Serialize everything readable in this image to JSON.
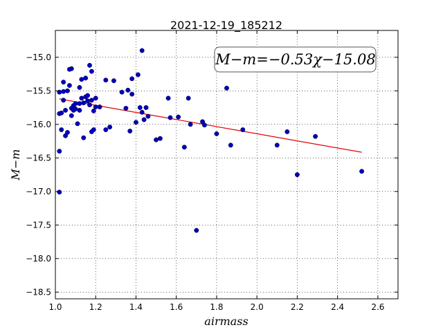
{
  "chart_data": {
    "type": "scatter",
    "title": "2021-12-19_185212",
    "xlabel": "airmass",
    "ylabel": "M−m",
    "xlim": [
      1.0,
      2.7
    ],
    "ylim": [
      -18.6,
      -14.6
    ],
    "y_inverted": true,
    "grid": true,
    "xticks": [
      "1.0",
      "1.2",
      "1.4",
      "1.6",
      "1.8",
      "2.0",
      "2.2",
      "2.4",
      "2.6"
    ],
    "yticks": [
      "−15.0",
      "−15.5",
      "−16.0",
      "−16.5",
      "−17.0",
      "−17.5",
      "−18.0",
      "−18.5"
    ],
    "annotation": "M−m=−0.53χ−15.08",
    "annotation_placement": "top-right",
    "fit_line": {
      "slope": -0.53,
      "intercept": -15.08,
      "x_range": [
        1.02,
        2.52
      ],
      "color": "#dd0000"
    },
    "point_color": "#0000bb",
    "points": [
      [
        1.02,
        -15.84
      ],
      [
        1.02,
        -16.4
      ],
      [
        1.02,
        -17.01
      ],
      [
        1.02,
        -15.52
      ],
      [
        1.03,
        -15.83
      ],
      [
        1.03,
        -16.08
      ],
      [
        1.04,
        -15.37
      ],
      [
        1.04,
        -15.64
      ],
      [
        1.04,
        -15.51
      ],
      [
        1.05,
        -16.17
      ],
      [
        1.05,
        -15.79
      ],
      [
        1.06,
        -15.5
      ],
      [
        1.06,
        -16.12
      ],
      [
        1.07,
        -15.18
      ],
      [
        1.07,
        -15.42
      ],
      [
        1.08,
        -15.17
      ],
      [
        1.08,
        -15.76
      ],
      [
        1.08,
        -15.87
      ],
      [
        1.09,
        -15.79
      ],
      [
        1.09,
        -15.72
      ],
      [
        1.1,
        -15.77
      ],
      [
        1.1,
        -15.69
      ],
      [
        1.11,
        -15.99
      ],
      [
        1.12,
        -15.69
      ],
      [
        1.12,
        -15.79
      ],
      [
        1.12,
        -15.45
      ],
      [
        1.13,
        -15.61
      ],
      [
        1.13,
        -15.33
      ],
      [
        1.14,
        -15.68
      ],
      [
        1.14,
        -16.2
      ],
      [
        1.15,
        -15.31
      ],
      [
        1.15,
        -15.59
      ],
      [
        1.16,
        -15.65
      ],
      [
        1.16,
        -15.57
      ],
      [
        1.17,
        -15.71
      ],
      [
        1.17,
        -15.12
      ],
      [
        1.18,
        -15.64
      ],
      [
        1.18,
        -15.21
      ],
      [
        1.18,
        -16.11
      ],
      [
        1.19,
        -16.08
      ],
      [
        1.19,
        -15.8
      ],
      [
        1.2,
        -15.74
      ],
      [
        1.2,
        -15.61
      ],
      [
        1.22,
        -15.74
      ],
      [
        1.25,
        -15.34
      ],
      [
        1.25,
        -16.08
      ],
      [
        1.27,
        -16.04
      ],
      [
        1.29,
        -15.35
      ],
      [
        1.33,
        -15.52
      ],
      [
        1.35,
        -15.76
      ],
      [
        1.36,
        -15.49
      ],
      [
        1.37,
        -16.1
      ],
      [
        1.38,
        -15.32
      ],
      [
        1.38,
        -15.55
      ],
      [
        1.4,
        -15.97
      ],
      [
        1.41,
        -15.26
      ],
      [
        1.42,
        -15.75
      ],
      [
        1.43,
        -14.9
      ],
      [
        1.43,
        -15.82
      ],
      [
        1.44,
        -15.93
      ],
      [
        1.45,
        -15.75
      ],
      [
        1.46,
        -15.88
      ],
      [
        1.5,
        -16.23
      ],
      [
        1.52,
        -16.21
      ],
      [
        1.56,
        -15.61
      ],
      [
        1.57,
        -15.9
      ],
      [
        1.61,
        -15.89
      ],
      [
        1.64,
        -16.34
      ],
      [
        1.66,
        -15.61
      ],
      [
        1.67,
        -16.0
      ],
      [
        1.7,
        -17.58
      ],
      [
        1.73,
        -15.96
      ],
      [
        1.74,
        -16.01
      ],
      [
        1.8,
        -16.14
      ],
      [
        1.85,
        -15.46
      ],
      [
        1.87,
        -16.31
      ],
      [
        1.93,
        -16.08
      ],
      [
        2.1,
        -16.31
      ],
      [
        2.15,
        -16.11
      ],
      [
        2.2,
        -16.75
      ],
      [
        2.29,
        -16.18
      ],
      [
        2.52,
        -16.7
      ]
    ]
  }
}
